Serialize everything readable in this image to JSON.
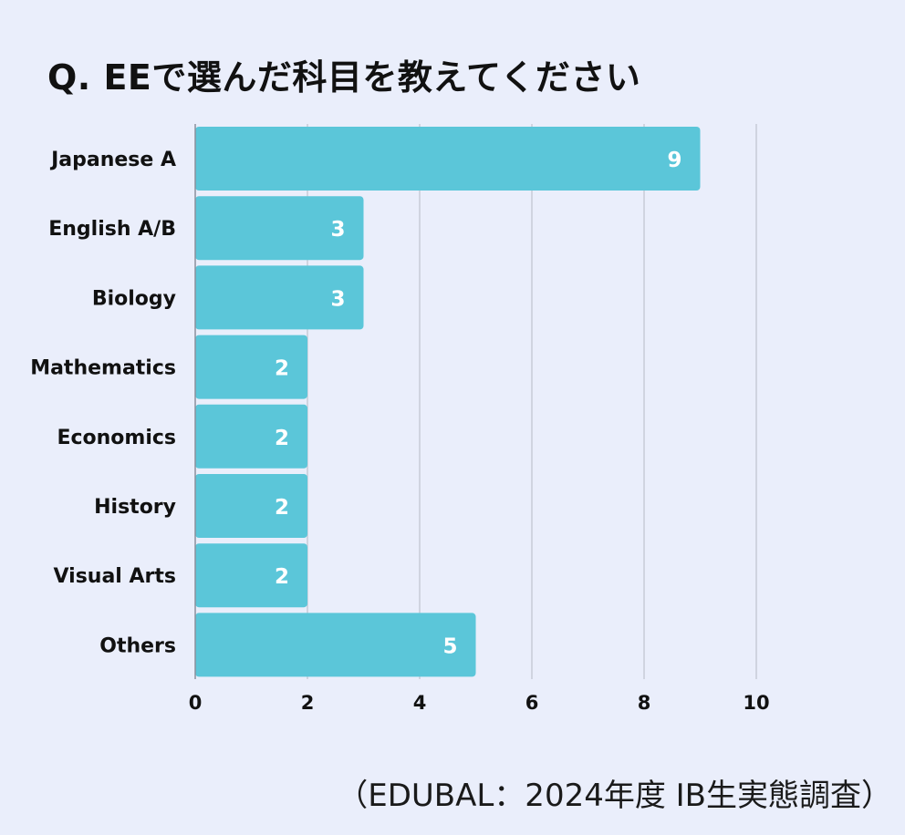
{
  "colors": {
    "background": "#EAEEFB",
    "bar": "#5BC6D9",
    "grid": "#C2C6D2",
    "axis": "#8A8F9C",
    "text": "#111111",
    "value_text": "#FFFFFF"
  },
  "chart_data": {
    "type": "bar",
    "orientation": "horizontal",
    "title": "Q. EEで選んだ科目を教えてください",
    "categories": [
      "Japanese A",
      "English A/B",
      "Biology",
      "Mathematics",
      "Economics",
      "History",
      "Visual Arts",
      "Others"
    ],
    "values": [
      9,
      3,
      3,
      2,
      2,
      2,
      2,
      5
    ],
    "xlabel": "",
    "ylabel": "",
    "xlim": [
      0,
      10
    ],
    "xticks": [
      0,
      2,
      4,
      6,
      8,
      10
    ],
    "grid": true,
    "legend": "none",
    "data_labels": true
  },
  "source": "（EDUBAL：2024年度 IB生実態調査）"
}
